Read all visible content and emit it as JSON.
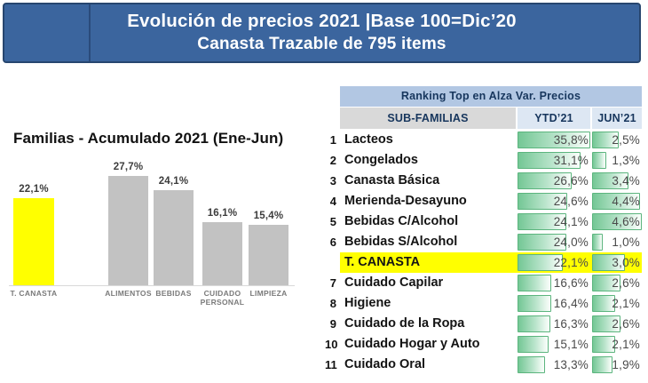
{
  "banner": {
    "line1": "Evolución de precios 2021 |Base 100=Dic’20",
    "line2": "Canasta Trazable de 795 items"
  },
  "colors": {
    "banner_bg": "#3b659e",
    "banner_border": "#27466f",
    "banner_text": "#ffffff",
    "table_title_bg": "#b2c7e3",
    "column_header_bg": "#dde7f3",
    "subfamilias_header_bg": "#d9d9d9",
    "header_text": "#17365d",
    "highlight_yellow": "#ffff00",
    "databar_green": "#79c79a",
    "databar_border": "#5cb57e",
    "bar_gray": "#c2c2c2",
    "value_text": "#4a4a4a",
    "name_text": "#141414",
    "category_label": "#7a7a7a"
  },
  "chart_data": [
    {
      "type": "bar",
      "title": "Familias - Acumulado 2021 (Ene-Jun)",
      "categories": [
        "T. CANASTA",
        "ALIMENTOS",
        "BEBIDAS",
        "CUIDADO PERSONAL",
        "LIMPIEZA"
      ],
      "values": [
        22.1,
        27.7,
        24.1,
        16.1,
        15.4
      ],
      "value_labels": [
        "22,1%",
        "27,7%",
        "24,1%",
        "16,1%",
        "15,4%"
      ],
      "highlight_category": "T. CANASTA",
      "unit": "%",
      "xlabel": "",
      "ylabel": "",
      "ylim": [
        0,
        27.7
      ],
      "grid": false,
      "legend": false
    },
    {
      "type": "table",
      "title": "Ranking Top en Alza Var. Precios",
      "columns": [
        "SUB-FAMILIAS",
        "YTD’21",
        "JUN’21"
      ],
      "databar_scale_max": {
        "ytd": 35.8,
        "jun": 4.6
      },
      "rows": [
        {
          "rank": "1",
          "name": "Lacteos",
          "ytd": 35.8,
          "jun": 2.5,
          "ytd_label": "35,8%",
          "jun_label": "2,5%",
          "highlight": false
        },
        {
          "rank": "2",
          "name": "Congelados",
          "ytd": 31.1,
          "jun": 1.3,
          "ytd_label": "31,1%",
          "jun_label": "1,3%",
          "highlight": false
        },
        {
          "rank": "3",
          "name": "Canasta Básica",
          "ytd": 26.6,
          "jun": 3.4,
          "ytd_label": "26,6%",
          "jun_label": "3,4%",
          "highlight": false
        },
        {
          "rank": "4",
          "name": "Merienda-Desayuno",
          "ytd": 24.6,
          "jun": 4.4,
          "ytd_label": "24,6%",
          "jun_label": "4,4%",
          "highlight": false
        },
        {
          "rank": "5",
          "name": "Bebidas C/Alcohol",
          "ytd": 24.1,
          "jun": 4.6,
          "ytd_label": "24,1%",
          "jun_label": "4,6%",
          "highlight": false
        },
        {
          "rank": "6",
          "name": "Bebidas S/Alcohol",
          "ytd": 24.0,
          "jun": 1.0,
          "ytd_label": "24,0%",
          "jun_label": "1,0%",
          "highlight": false
        },
        {
          "rank": "",
          "name": "T. CANASTA",
          "ytd": 22.1,
          "jun": 3.0,
          "ytd_label": "22,1%",
          "jun_label": "3,0%",
          "highlight": true
        },
        {
          "rank": "7",
          "name": "Cuidado Capilar",
          "ytd": 16.6,
          "jun": 2.6,
          "ytd_label": "16,6%",
          "jun_label": "2,6%",
          "highlight": false
        },
        {
          "rank": "8",
          "name": "Higiene",
          "ytd": 16.4,
          "jun": 2.1,
          "ytd_label": "16,4%",
          "jun_label": "2,1%",
          "highlight": false
        },
        {
          "rank": "9",
          "name": "Cuidado de la Ropa",
          "ytd": 16.3,
          "jun": 2.6,
          "ytd_label": "16,3%",
          "jun_label": "2,6%",
          "highlight": false
        },
        {
          "rank": "10",
          "name": "Cuidado Hogar y Auto",
          "ytd": 15.1,
          "jun": 2.1,
          "ytd_label": "15,1%",
          "jun_label": "2,1%",
          "highlight": false
        },
        {
          "rank": "11",
          "name": "Cuidado Oral",
          "ytd": 13.3,
          "jun": 1.9,
          "ytd_label": "13,3%",
          "jun_label": "1,9%",
          "highlight": false
        }
      ]
    }
  ]
}
